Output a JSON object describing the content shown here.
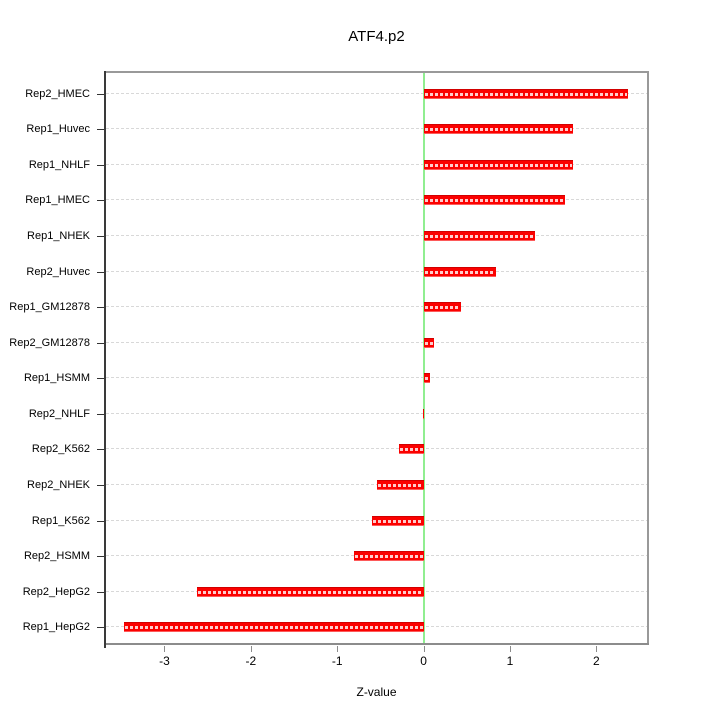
{
  "title": "ATF4.p2",
  "chart_data": {
    "type": "bar",
    "orientation": "horizontal",
    "title": "ATF4.p2",
    "xlabel": "Z-value",
    "ylabel": "",
    "categories": [
      "Rep2_HMEC",
      "Rep1_Huvec",
      "Rep1_NHLF",
      "Rep1_HMEC",
      "Rep1_NHEK",
      "Rep2_Huvec",
      "Rep1_GM12878",
      "Rep2_GM12878",
      "Rep1_HSMM",
      "Rep2_NHLF",
      "Rep2_K562",
      "Rep2_NHEK",
      "Rep1_K562",
      "Rep2_HSMM",
      "Rep2_HepG2",
      "Rep1_HepG2"
    ],
    "values": [
      2.37,
      1.73,
      1.73,
      1.64,
      1.29,
      0.84,
      0.43,
      0.12,
      0.08,
      -0.01,
      -0.28,
      -0.54,
      -0.6,
      -0.81,
      -2.62,
      -3.47
    ],
    "x_ticks": [
      -3,
      -2,
      -1,
      0,
      1,
      2
    ],
    "xlim": [
      -3.7,
      2.61
    ],
    "zero_line": 0,
    "grid": "dashed horizontal lines at each category",
    "legend": "none",
    "colors": {
      "bar": "#FF0000",
      "zero_line": "#90EE90",
      "grid": "#D8D8D8",
      "box": "#999999",
      "axis": "#333333"
    }
  }
}
